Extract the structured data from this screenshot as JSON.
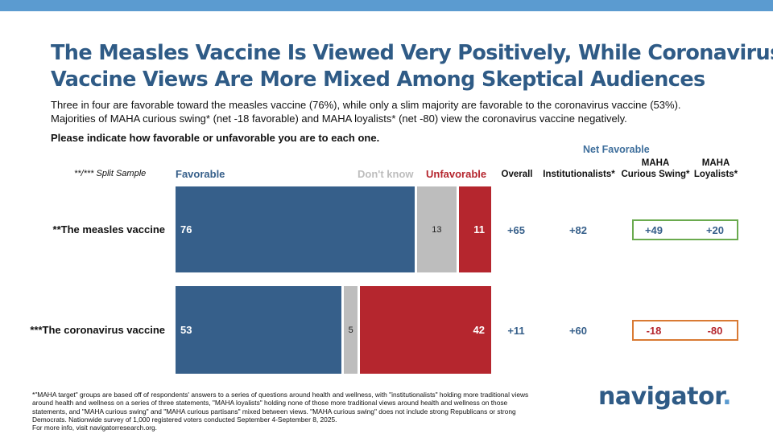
{
  "header": {
    "title_lines": [
      "The Measles Vaccine Is Viewed Very Positively, While Coronavirus",
      "Vaccine Views Are More Mixed Among Skeptical Audiences"
    ],
    "subtitle_lines": [
      "Three in four are favorable toward the measles vaccine (76%), while only a slim majority are favorable to the coronavirus vaccine (53%).",
      "Majorities of MAHA curious swing* (net -18 favorable) and MAHA loyalists* (net -80) view the coronavirus vaccine negatively."
    ],
    "question": "Please indicate how favorable or unfavorable you are to each one."
  },
  "colors": {
    "favorable": "#365f8a",
    "dont_know": "#bdbdbd",
    "unfavorable": "#b5262e",
    "title": "#2f5b86",
    "box_positive": "#6aaa4e",
    "box_negative": "#d97a34"
  },
  "chart_data": {
    "type": "bar",
    "stacked": true,
    "orientation": "horizontal",
    "sample_note": "**/*** Split Sample",
    "series_labels": {
      "favorable": "Favorable",
      "dont_know": "Don't know",
      "unfavorable": "Unfavorable"
    },
    "categories": [
      "**The measles vaccine",
      "***The coronavirus vaccine"
    ],
    "series": [
      {
        "name": "Favorable",
        "values": [
          76,
          53
        ]
      },
      {
        "name": "Don't know",
        "values": [
          13,
          5
        ]
      },
      {
        "name": "Unfavorable",
        "values": [
          11,
          42
        ]
      }
    ],
    "net_favorable_header": "Net Favorable",
    "net_columns": [
      {
        "label": "Overall",
        "values": [
          "+65",
          "+11"
        ]
      },
      {
        "label": "Institutionalists*",
        "values": [
          "+82",
          "+60"
        ]
      },
      {
        "label": "MAHA Curious Swing*",
        "label_lines": [
          "MAHA",
          "Curious Swing*"
        ],
        "values": [
          "+49",
          "-18"
        ]
      },
      {
        "label": "MAHA Loyalists*",
        "label_lines": [
          "MAHA",
          "Loyalists*"
        ],
        "values": [
          "+20",
          "-80"
        ]
      }
    ]
  },
  "footnote": {
    "lines": [
      "*\"MAHA target\" groups are based off of respondents' answers to a series of questions around health and wellness, with \"institutionalists\" holding more traditional views",
      "around health and wellness on a series of three statements, \"MAHA loyalists\" holding none of those more traditional views around health and wellness on those",
      "statements, and \"MAHA curious swing\" and \"MAHA curious partisans\" mixed between views. \"MAHA curious swing\" does not include strong Republicans or strong",
      "Democrats. Nationwide survey of 1,000 registered voters conducted September 4-September 8, 2025.",
      "For more info, visit navigatorresearch.org."
    ]
  },
  "logo": {
    "text": "navigator",
    "dot": "."
  }
}
